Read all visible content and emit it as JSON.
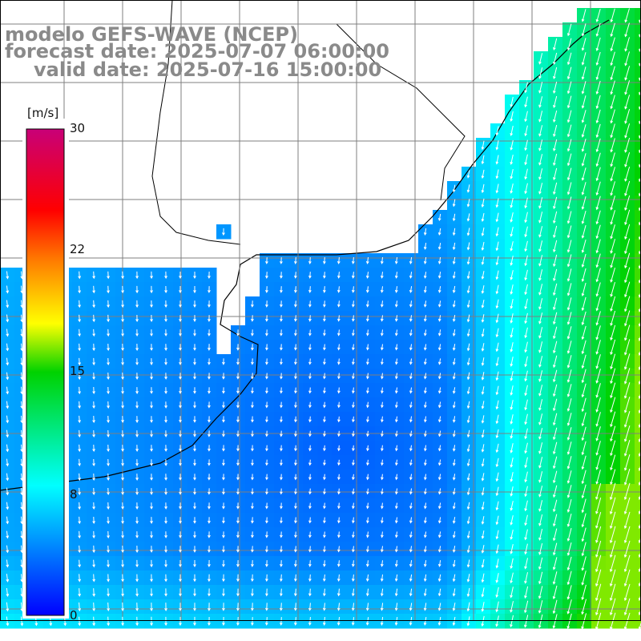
{
  "title": {
    "line1": "modelo GEFS-WAVE (NCEP)",
    "line2": "forecast date: 2025-07-07 06:00:00",
    "line3": "valid date: 2025-07-16 15:00:00"
  },
  "colorbar": {
    "unit": "[m/s]",
    "ticks": [
      "30",
      "22",
      "15",
      "8",
      "0"
    ]
  },
  "chart_data": {
    "type": "heatmap",
    "variable": "wind speed with direction arrows",
    "unit": "[m/s]",
    "colorbar_range": [
      0,
      30
    ],
    "colorbar_ticks": [
      0,
      8,
      15,
      22,
      30
    ],
    "colors": {
      "low": "#0000ff",
      "mid_low": "#00ffff",
      "mid": "#00ff00",
      "mid_high": "#ffff00",
      "high_a": "#ff0000",
      "high_b": "#c8006e",
      "land": "#ffffff",
      "coast": "#000000",
      "grid": "#7f7f7f",
      "arrow": "#ffffff"
    },
    "field": {
      "calm_center": "southwest-central sea",
      "max_region": "east / southeast",
      "approx_range_ms": [
        2,
        16
      ]
    },
    "arrows": "mostly southward to south-south-westward, stronger toward east"
  }
}
